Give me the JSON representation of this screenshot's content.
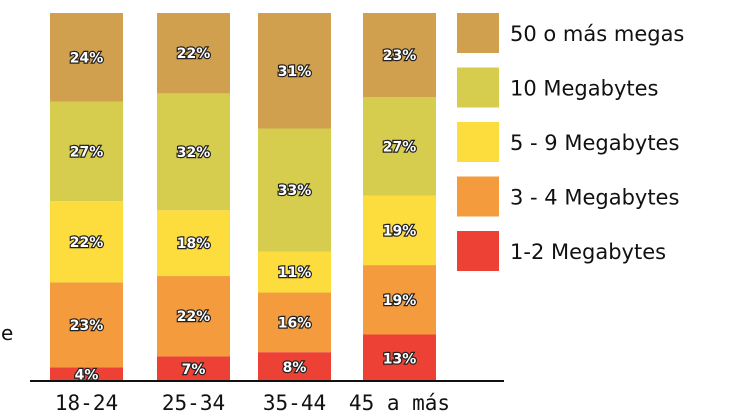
{
  "chart_data": {
    "type": "bar",
    "stacked": true,
    "categories": [
      "18-24",
      "25-34",
      "35-44",
      "45 a más"
    ],
    "series": [
      {
        "name": "1-2 Megabytes",
        "color": "#ee4136",
        "values": [
          4,
          7,
          8,
          13
        ]
      },
      {
        "name": "3 - 4 Megabytes",
        "color": "#f49b3e",
        "values": [
          23,
          22,
          16,
          19
        ]
      },
      {
        "name": "5 - 9 Megabytes",
        "color": "#fcdd3d",
        "values": [
          22,
          18,
          11,
          19
        ]
      },
      {
        "name": "10 Megabytes",
        "color": "#d6cc4e",
        "values": [
          27,
          32,
          33,
          27
        ]
      },
      {
        "name": "50 o más megas",
        "color": "#d0a04e",
        "values": [
          24,
          22,
          31,
          23
        ]
      }
    ],
    "value_suffix": "%",
    "ylim": [
      0,
      100
    ],
    "legend_position": "right",
    "legend_order": [
      "50 o más megas",
      "10 Megabytes",
      "5 - 9 Megabytes",
      "3 - 4 Megabytes",
      "1-2 Megabytes"
    ],
    "partial_text": "e"
  }
}
